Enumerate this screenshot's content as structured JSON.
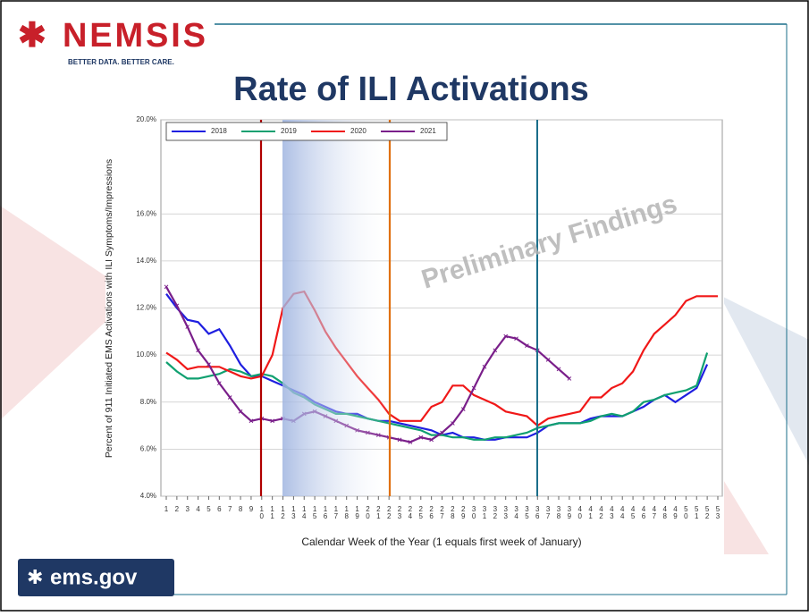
{
  "logo": {
    "name": "NEMSIS",
    "tagline": "BETTER DATA. BETTER CARE."
  },
  "footer": "ems.gov",
  "chart_data": {
    "type": "line",
    "title": "Rate of ILI Activations",
    "y_label": "Percent of 911 Initiated EMS Activations with ILI Symptoms/Impressions",
    "x_label": "Calendar Week of the Year (1 equals first week of January)",
    "annotation": "Preliminary Findings",
    "x": [
      1,
      2,
      3,
      4,
      5,
      6,
      7,
      8,
      9,
      10,
      11,
      12,
      13,
      14,
      15,
      16,
      17,
      18,
      19,
      20,
      21,
      22,
      23,
      24,
      25,
      26,
      27,
      28,
      29,
      30,
      31,
      32,
      33,
      34,
      35,
      36,
      37,
      38,
      39,
      40,
      41,
      42,
      43,
      44,
      45,
      46,
      47,
      48,
      49,
      50,
      51,
      52,
      53
    ],
    "xlim": [
      1,
      53
    ],
    "ylim": [
      4,
      20
    ],
    "yticks": [
      {
        "value": 4,
        "label": "4.0%"
      },
      {
        "value": 6,
        "label": "6.0%"
      },
      {
        "value": 8,
        "label": "8.0%"
      },
      {
        "value": 10,
        "label": "10.0%"
      },
      {
        "value": 12,
        "label": "12.0%"
      },
      {
        "value": 14,
        "label": "14.0%"
      },
      {
        "value": 16,
        "label": "16.0%"
      },
      {
        "value": 20,
        "label": "20.0%"
      }
    ],
    "grid": true,
    "legend": "top-left",
    "series": [
      {
        "name": "2018",
        "color": "#1f1fe0",
        "values": [
          12.6,
          12.0,
          11.5,
          11.4,
          10.9,
          11.1,
          10.4,
          9.6,
          9.1,
          9.1,
          8.9,
          8.7,
          8.5,
          8.3,
          8.0,
          7.8,
          7.6,
          7.5,
          7.5,
          7.3,
          7.2,
          7.2,
          7.1,
          7.0,
          6.9,
          6.8,
          6.6,
          6.7,
          6.5,
          6.5,
          6.4,
          6.4,
          6.5,
          6.5,
          6.5,
          6.7,
          7.0,
          7.1,
          7.1,
          7.1,
          7.3,
          7.4,
          7.4,
          7.4,
          7.6,
          7.8,
          8.1,
          8.3,
          8.0,
          8.3,
          8.6,
          9.6,
          null
        ]
      },
      {
        "name": "2019",
        "color": "#10a070",
        "values": [
          9.7,
          9.3,
          9.0,
          9.0,
          9.1,
          9.2,
          9.4,
          9.3,
          9.1,
          9.2,
          9.1,
          8.8,
          8.4,
          8.2,
          7.9,
          7.7,
          7.5,
          7.5,
          7.4,
          7.3,
          7.2,
          7.1,
          7.0,
          6.9,
          6.8,
          6.6,
          6.6,
          6.5,
          6.5,
          6.4,
          6.4,
          6.5,
          6.5,
          6.6,
          6.7,
          6.9,
          7.0,
          7.1,
          7.1,
          7.1,
          7.2,
          7.4,
          7.5,
          7.4,
          7.6,
          8.0,
          8.1,
          8.3,
          8.4,
          8.5,
          8.7,
          10.1,
          null
        ]
      },
      {
        "name": "2020",
        "color": "#f01818",
        "values": [
          10.1,
          9.8,
          9.4,
          9.5,
          9.5,
          9.5,
          9.3,
          9.1,
          9.0,
          9.1,
          10.0,
          12.0,
          12.6,
          12.7,
          11.9,
          11.0,
          10.3,
          9.7,
          9.1,
          8.6,
          8.1,
          7.5,
          7.2,
          7.2,
          7.2,
          7.8,
          8.0,
          8.7,
          8.7,
          8.3,
          8.1,
          7.9,
          7.6,
          7.5,
          7.4,
          7.0,
          7.3,
          7.4,
          7.5,
          7.6,
          8.2,
          8.2,
          8.6,
          8.8,
          9.3,
          10.2,
          10.9,
          11.3,
          11.7,
          12.3,
          12.5,
          12.5,
          12.5
        ]
      },
      {
        "name": "2021",
        "color": "#7a1f8a",
        "values": [
          12.9,
          12.1,
          11.2,
          10.2,
          9.6,
          8.8,
          8.2,
          7.6,
          7.2,
          7.3,
          7.2,
          7.3,
          7.2,
          7.5,
          7.6,
          7.4,
          7.2,
          7.0,
          6.8,
          6.7,
          6.6,
          6.5,
          6.4,
          6.3,
          6.5,
          6.4,
          6.7,
          7.1,
          7.7,
          8.6,
          9.5,
          10.2,
          10.8,
          10.7,
          10.4,
          10.2,
          9.8,
          9.4,
          9.0,
          null,
          null,
          null,
          null,
          null,
          null,
          null,
          null,
          null,
          null,
          null,
          null,
          null,
          null
        ]
      }
    ]
  }
}
